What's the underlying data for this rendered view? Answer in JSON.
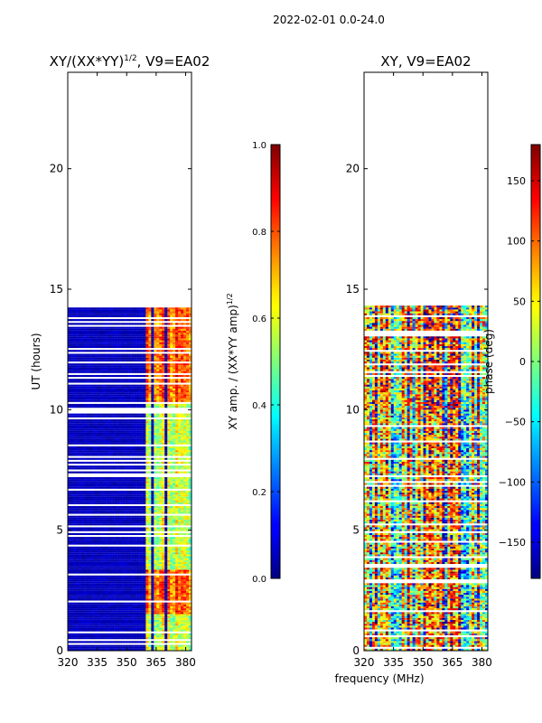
{
  "suptitle": "2022-02-01 0.0-24.0",
  "xlabel_common": "frequency (MHz)",
  "chart_data": [
    {
      "type": "heatmap",
      "title": "XY/(XX*YY)^1/2, V9=EA02",
      "title_main": "XY/(XX*YY)",
      "title_sup": "1/2",
      "title_tail": ", V9=EA02",
      "xlabel": "frequency (MHz)",
      "ylabel": "UT (hours)",
      "xlim": [
        320,
        383
      ],
      "ylim": [
        0,
        24
      ],
      "xticks": [
        320,
        335,
        350,
        365,
        380
      ],
      "yticks": [
        0,
        5,
        10,
        15,
        20
      ],
      "data_extent_hours": [
        0.0,
        14.3
      ],
      "colorbar": {
        "label": "XY amp. / (XX*YY amp)^1/2",
        "label_main": "XY amp. / (XX*YY amp)",
        "label_sup": "1/2",
        "vmin": 0.0,
        "vmax": 1.0,
        "ticks": [
          "0.0",
          "0.2",
          "0.4",
          "0.6",
          "0.8",
          "1.0"
        ],
        "tick_values": [
          0.0,
          0.2,
          0.4,
          0.6,
          0.8,
          1.0
        ]
      },
      "colormap": "jet"
    },
    {
      "type": "heatmap",
      "title": "XY, V9=EA02",
      "xlabel": "frequency (MHz)",
      "ylabel": "",
      "xlim": [
        320,
        383
      ],
      "ylim": [
        0,
        24
      ],
      "xticks": [
        320,
        335,
        350,
        365,
        380
      ],
      "yticks": [
        0,
        5,
        10,
        15,
        20
      ],
      "data_extent_hours": [
        0.0,
        14.3
      ],
      "colorbar": {
        "label": "phase (deg)",
        "vmin": -180,
        "vmax": 180,
        "ticks": [
          "−150",
          "−100",
          "−50",
          "0",
          "50",
          "100",
          "150"
        ],
        "tick_values": [
          -150,
          -100,
          -50,
          0,
          50,
          100,
          150
        ]
      },
      "colormap": "jet"
    }
  ]
}
